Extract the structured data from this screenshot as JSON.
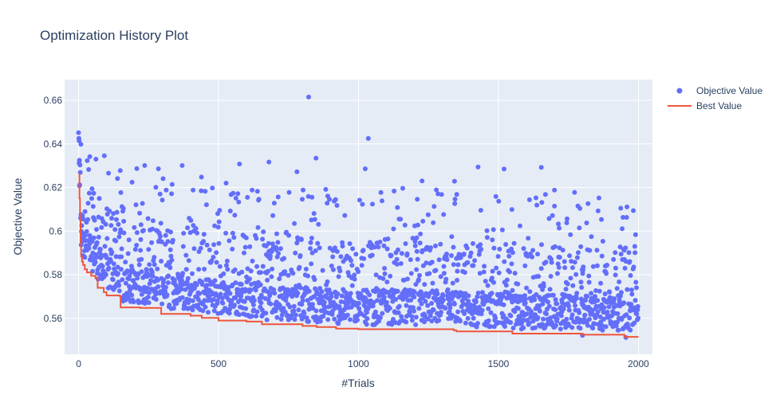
{
  "chart_data": {
    "type": "scatter",
    "title": "Optimization History Plot",
    "xlabel": "#Trials",
    "ylabel": "Objective Value",
    "xlim": [
      -50,
      2050
    ],
    "ylim": [
      0.5435,
      0.6695
    ],
    "x_ticks": [
      0,
      500,
      1000,
      1500,
      2000
    ],
    "y_ticks": [
      0.56,
      0.58,
      0.6,
      0.62,
      0.64,
      0.66
    ],
    "x_tick_labels": [
      "0",
      "500",
      "1000",
      "1500",
      "2000"
    ],
    "y_tick_labels": [
      "0.56",
      "0.58",
      "0.6",
      "0.62",
      "0.64",
      "0.66"
    ],
    "grid": true,
    "legend_position": "top-right",
    "colors": {
      "plot_background": "#e5ecf6",
      "grid": "#ffffff",
      "objective": "#636efa",
      "best": "#ef553b",
      "text": "#2a3f5f"
    },
    "series": [
      {
        "name": "Objective Value",
        "mode": "markers",
        "trial_count": 2000,
        "notable_points": [
          {
            "x": 822,
            "y": 0.6615
          },
          {
            "x": 1035,
            "y": 0.6425
          },
          {
            "x": 2,
            "y": 0.6415
          },
          {
            "x": 8,
            "y": 0.6398
          },
          {
            "x": 40,
            "y": 0.6342
          },
          {
            "x": 848,
            "y": 0.6335
          },
          {
            "x": 3,
            "y": 0.6325
          },
          {
            "x": 680,
            "y": 0.6317
          },
          {
            "x": 575,
            "y": 0.6308
          },
          {
            "x": 236,
            "y": 0.6301
          },
          {
            "x": 370,
            "y": 0.6301
          },
          {
            "x": 1427,
            "y": 0.6294
          },
          {
            "x": 1653,
            "y": 0.6292
          },
          {
            "x": 1520,
            "y": 0.6285
          },
          {
            "x": 1024,
            "y": 0.6286
          },
          {
            "x": 1227,
            "y": 0.623
          },
          {
            "x": 1343,
            "y": 0.6229
          },
          {
            "x": 780,
            "y": 0.6272
          },
          {
            "x": 1700,
            "y": 0.6188
          },
          {
            "x": 1945,
            "y": 0.6063
          },
          {
            "x": 1800,
            "y": 0.5522
          },
          {
            "x": 1955,
            "y": 0.5512
          },
          {
            "x": 1987,
            "y": 0.593
          }
        ]
      },
      {
        "name": "Best Value",
        "mode": "lines",
        "steps": [
          [
            0,
            0.6262
          ],
          [
            3,
            0.615
          ],
          [
            5,
            0.605
          ],
          [
            7,
            0.595
          ],
          [
            9,
            0.5885
          ],
          [
            12,
            0.586
          ],
          [
            16,
            0.5845
          ],
          [
            22,
            0.5825
          ],
          [
            30,
            0.581
          ],
          [
            45,
            0.5795
          ],
          [
            60,
            0.5785
          ],
          [
            68,
            0.574
          ],
          [
            90,
            0.572
          ],
          [
            100,
            0.5705
          ],
          [
            148,
            0.57
          ],
          [
            150,
            0.565
          ],
          [
            220,
            0.5648
          ],
          [
            290,
            0.5648
          ],
          [
            295,
            0.562
          ],
          [
            400,
            0.5612
          ],
          [
            440,
            0.5602
          ],
          [
            500,
            0.559
          ],
          [
            600,
            0.5585
          ],
          [
            655,
            0.5573
          ],
          [
            800,
            0.5565
          ],
          [
            850,
            0.556
          ],
          [
            920,
            0.5553
          ],
          [
            1000,
            0.555
          ],
          [
            1340,
            0.5545
          ],
          [
            1350,
            0.554
          ],
          [
            1550,
            0.553
          ],
          [
            1800,
            0.5525
          ],
          [
            1950,
            0.5515
          ],
          [
            2000,
            0.5515
          ]
        ]
      }
    ]
  }
}
